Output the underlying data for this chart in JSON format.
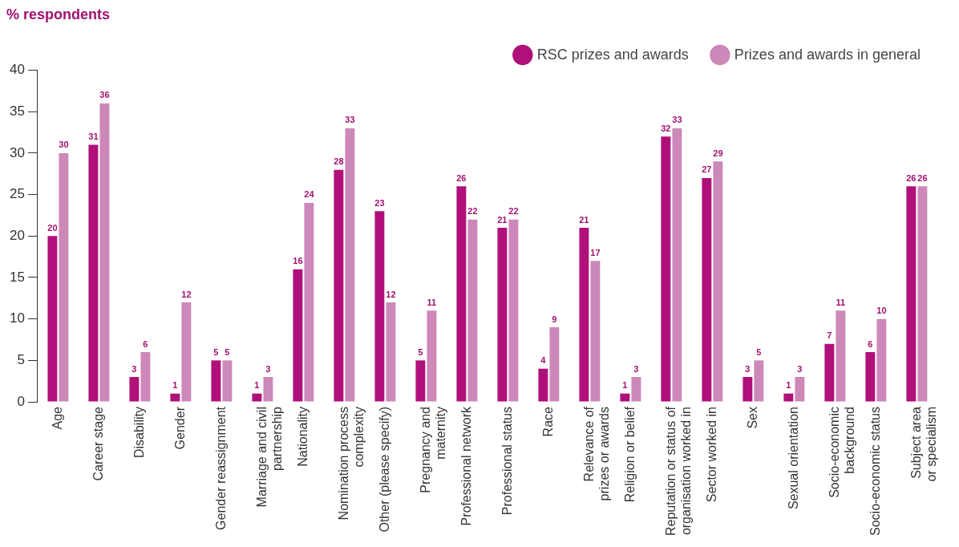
{
  "chart_data": {
    "type": "bar",
    "ylabel": "% respondents",
    "categories": [
      "Age",
      "Career stage",
      "Disability",
      "Gender",
      "Gender reassignment",
      "Marriage and civil partnership",
      "Nationality",
      "Nomination process complexity",
      "Other (please specify)",
      "Pregnancy and maternity",
      "Professional network",
      "Professional status",
      "Race",
      "Relevance of prizes or awards",
      "Religion or belief",
      "Reputation or status of organisation worked in",
      "Sector worked in",
      "Sex",
      "Sexual orientation",
      "Socio-economic background",
      "Socio-economic status",
      "Subject area or specialism"
    ],
    "series": [
      {
        "name": "RSC prizes and awards",
        "color": "#b0107a",
        "values": [
          20,
          31,
          3,
          1,
          5,
          1,
          16,
          28,
          23,
          5,
          26,
          21,
          4,
          21,
          1,
          32,
          27,
          3,
          1,
          7,
          6,
          26
        ]
      },
      {
        "name": "Prizes and awards in general",
        "color": "#cc88b8",
        "values": [
          30,
          36,
          6,
          12,
          5,
          3,
          24,
          33,
          12,
          11,
          22,
          22,
          9,
          17,
          3,
          33,
          29,
          5,
          3,
          11,
          10,
          26
        ]
      }
    ],
    "ylim": [
      0,
      40
    ],
    "yticks": [
      0,
      5,
      10,
      15,
      20,
      25,
      30,
      35,
      40
    ],
    "grid": false,
    "legend": "top right",
    "data_labels": true
  }
}
